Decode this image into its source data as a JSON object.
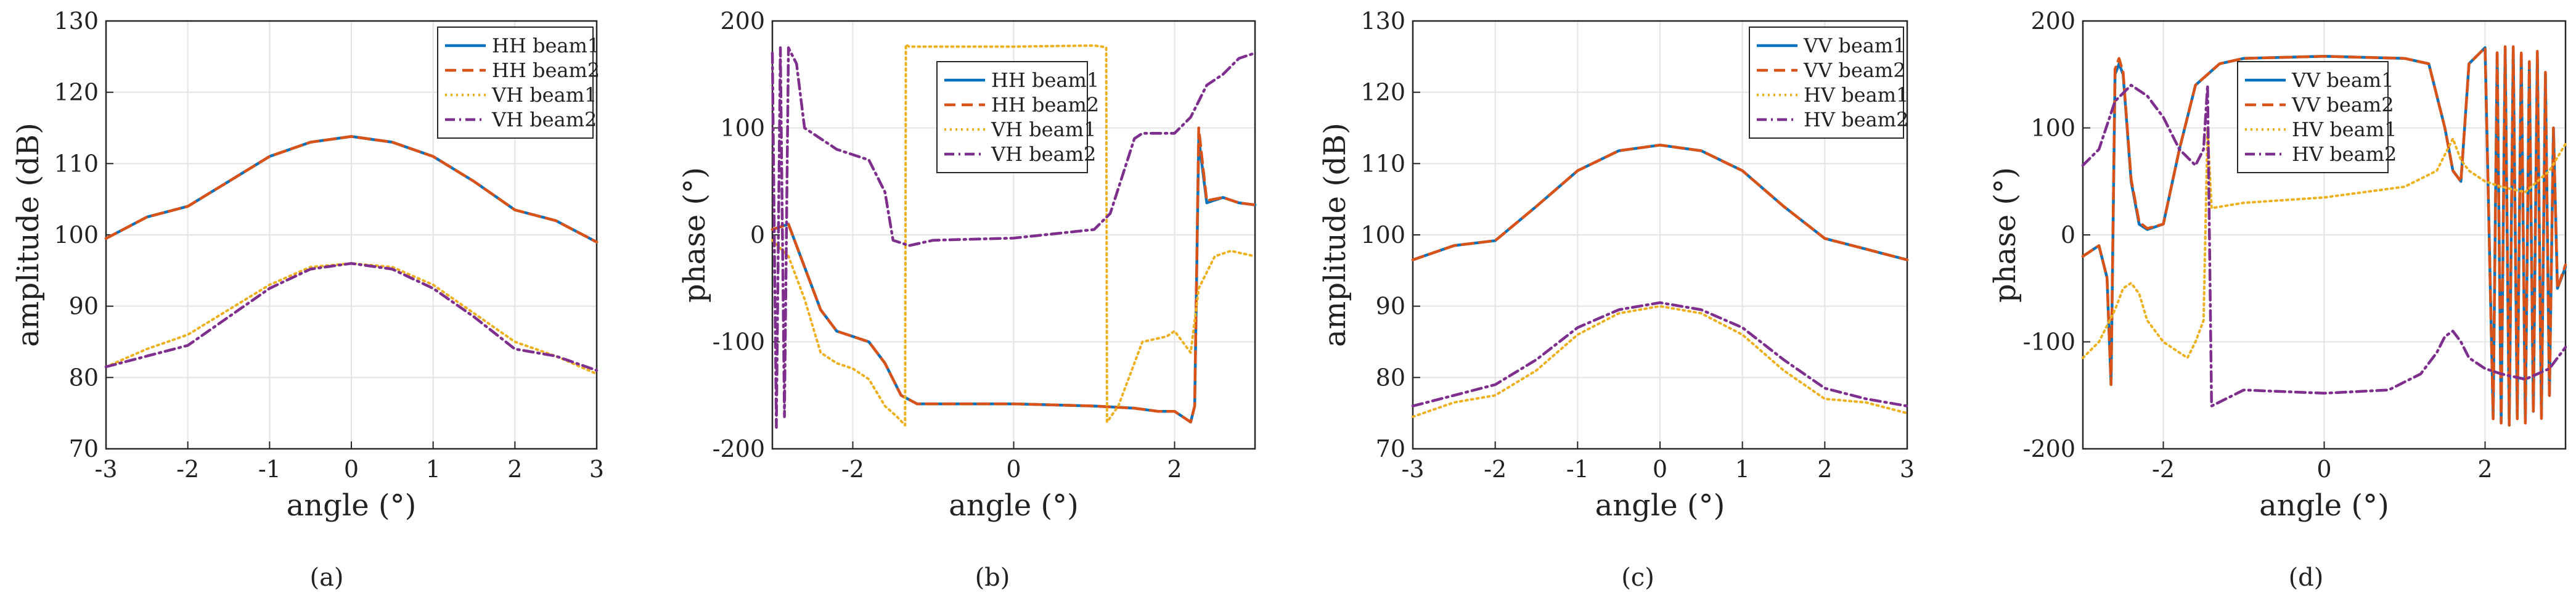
{
  "chart_data": [
    {
      "type": "line",
      "caption": "(a)",
      "xlabel": "angle (°)",
      "ylabel": "amplitude (dB)",
      "xlim": [
        -3,
        3
      ],
      "ylim": [
        70,
        130
      ],
      "xticks": [
        -3,
        -2,
        -1,
        0,
        1,
        2,
        3
      ],
      "yticks": [
        70,
        80,
        90,
        100,
        110,
        120,
        130
      ],
      "grid": true,
      "legend_position": "top-right",
      "series": [
        {
          "name": "HH beam1",
          "color": "#0072BD",
          "style": "solid",
          "x": [
            -3,
            -2.5,
            -2,
            -1.5,
            -1,
            -0.5,
            0,
            0.5,
            1,
            1.5,
            2,
            2.5,
            3
          ],
          "values": [
            99.5,
            102.5,
            104,
            107.5,
            111,
            113,
            113.8,
            113,
            111,
            107.5,
            103.5,
            102,
            99
          ]
        },
        {
          "name": "HH beam2",
          "color": "#D95319",
          "style": "dashed",
          "x": [
            -3,
            -2.5,
            -2,
            -1.5,
            -1,
            -0.5,
            0,
            0.5,
            1,
            1.5,
            2,
            2.5,
            3
          ],
          "values": [
            99.5,
            102.5,
            104,
            107.5,
            111,
            113,
            113.8,
            113,
            111,
            107.5,
            103.5,
            102,
            99
          ]
        },
        {
          "name": "VH beam1",
          "color": "#EDB120",
          "style": "dotted",
          "x": [
            -3,
            -2.5,
            -2,
            -1.5,
            -1,
            -0.5,
            0,
            0.5,
            1,
            1.5,
            2,
            2.5,
            3
          ],
          "values": [
            81.5,
            84,
            86,
            89.5,
            93,
            95.5,
            96,
            95.5,
            93,
            89,
            85,
            83,
            80.5
          ]
        },
        {
          "name": "VH beam2",
          "color": "#7E2F8E",
          "style": "dashdot",
          "x": [
            -3,
            -2.5,
            -2,
            -1.5,
            -1,
            -0.5,
            0,
            0.5,
            1,
            1.5,
            2,
            2.5,
            3
          ],
          "values": [
            81.5,
            83,
            84.5,
            88.5,
            92.5,
            95.2,
            96,
            95.2,
            92.5,
            88.5,
            84,
            83,
            81
          ]
        }
      ]
    },
    {
      "type": "line",
      "caption": "(b)",
      "xlabel": "angle (°)",
      "ylabel": "phase (°)",
      "xlim": [
        -3,
        3
      ],
      "ylim": [
        -200,
        200
      ],
      "xticks": [
        -2,
        0,
        2
      ],
      "yticks": [
        -200,
        -100,
        0,
        100,
        200
      ],
      "grid": true,
      "legend_position": "top-center",
      "series": [
        {
          "name": "HH beam1",
          "color": "#0072BD",
          "style": "solid",
          "x": [
            -3,
            -2.8,
            -2.6,
            -2.4,
            -2.2,
            -2.0,
            -1.8,
            -1.6,
            -1.4,
            -1.2,
            -1.0,
            0,
            1.0,
            1.5,
            1.8,
            2.0,
            2.2,
            2.25,
            2.3,
            2.35,
            2.4,
            2.6,
            2.8,
            3.0
          ],
          "values": [
            5,
            10,
            -30,
            -70,
            -90,
            -95,
            -100,
            -120,
            -150,
            -158,
            -158,
            -158,
            -160,
            -162,
            -165,
            -165,
            -175,
            -160,
            90,
            60,
            30,
            35,
            30,
            28
          ]
        },
        {
          "name": "HH beam2",
          "color": "#D95319",
          "style": "dashed",
          "x": [
            -3,
            -2.8,
            -2.6,
            -2.4,
            -2.2,
            -2.0,
            -1.8,
            -1.6,
            -1.4,
            -1.2,
            -1.0,
            0,
            1.0,
            1.5,
            1.8,
            2.0,
            2.2,
            2.25,
            2.3,
            2.35,
            2.4,
            2.6,
            2.8,
            3.0
          ],
          "values": [
            5,
            10,
            -30,
            -70,
            -90,
            -95,
            -100,
            -120,
            -150,
            -158,
            -158,
            -158,
            -160,
            -162,
            -165,
            -165,
            -175,
            -160,
            100,
            65,
            32,
            35,
            30,
            28
          ]
        },
        {
          "name": "VH beam1",
          "color": "#EDB120",
          "style": "dotted",
          "x": [
            -3,
            -2.8,
            -2.6,
            -2.4,
            -2.2,
            -2.0,
            -1.8,
            -1.6,
            -1.45,
            -1.35,
            -1.34,
            -1.3,
            0,
            1.0,
            1.1,
            1.15,
            1.16,
            1.3,
            1.6,
            1.9,
            2.0,
            2.2,
            2.3,
            2.5,
            2.7,
            3.0
          ],
          "values": [
            -5,
            -20,
            -60,
            -110,
            -120,
            -125,
            -135,
            -160,
            -170,
            -178,
            178,
            176,
            176,
            177,
            176,
            175,
            -175,
            -160,
            -100,
            -95,
            -90,
            -110,
            -50,
            -20,
            -15,
            -20
          ]
        },
        {
          "name": "VH beam2",
          "color": "#7E2F8E",
          "style": "dashdot",
          "x": [
            -3,
            -2.95,
            -2.9,
            -2.85,
            -2.8,
            -2.7,
            -2.6,
            -2.4,
            -2.2,
            -2.0,
            -1.8,
            -1.6,
            -1.5,
            -1.3,
            -1.0,
            0,
            1.0,
            1.2,
            1.5,
            1.6,
            1.7,
            2.0,
            2.2,
            2.4,
            2.6,
            2.8,
            3.0
          ],
          "values": [
            170,
            -180,
            175,
            -170,
            175,
            160,
            100,
            90,
            80,
            75,
            70,
            40,
            -5,
            -10,
            -5,
            -3,
            5,
            20,
            90,
            95,
            95,
            95,
            110,
            140,
            150,
            165,
            170
          ]
        }
      ]
    },
    {
      "type": "line",
      "caption": "(c)",
      "xlabel": "angle (°)",
      "ylabel": "amplitude (dB)",
      "xlim": [
        -3,
        3
      ],
      "ylim": [
        70,
        130
      ],
      "xticks": [
        -3,
        -2,
        -1,
        0,
        1,
        2,
        3
      ],
      "yticks": [
        70,
        80,
        90,
        100,
        110,
        120,
        130
      ],
      "grid": true,
      "legend_position": "top-right",
      "series": [
        {
          "name": "VV beam1",
          "color": "#0072BD",
          "style": "solid",
          "x": [
            -3,
            -2.5,
            -2,
            -1.5,
            -1,
            -0.5,
            0,
            0.5,
            1,
            1.5,
            2,
            2.5,
            3
          ],
          "values": [
            96.5,
            98.5,
            99.2,
            104,
            109,
            111.8,
            112.6,
            111.8,
            109,
            104,
            99.5,
            98,
            96.5
          ]
        },
        {
          "name": "VV beam2",
          "color": "#D95319",
          "style": "dashed",
          "x": [
            -3,
            -2.5,
            -2,
            -1.5,
            -1,
            -0.5,
            0,
            0.5,
            1,
            1.5,
            2,
            2.5,
            3
          ],
          "values": [
            96.5,
            98.5,
            99.2,
            104,
            109,
            111.8,
            112.6,
            111.8,
            109,
            104,
            99.5,
            98,
            96.5
          ]
        },
        {
          "name": "HV beam1",
          "color": "#EDB120",
          "style": "dotted",
          "x": [
            -3,
            -2.5,
            -2,
            -1.5,
            -1,
            -0.5,
            0,
            0.5,
            1,
            1.5,
            2,
            2.5,
            3
          ],
          "values": [
            74.5,
            76.5,
            77.5,
            81,
            86,
            89,
            90,
            89,
            86,
            81,
            77,
            76.5,
            75
          ]
        },
        {
          "name": "HV beam2",
          "color": "#7E2F8E",
          "style": "dashdot",
          "x": [
            -3,
            -2.5,
            -2,
            -1.5,
            -1,
            -0.5,
            0,
            0.5,
            1,
            1.5,
            2,
            2.5,
            3
          ],
          "values": [
            76,
            77.5,
            79,
            82.5,
            87,
            89.5,
            90.5,
            89.5,
            87,
            82.5,
            78.5,
            77,
            76
          ]
        }
      ]
    },
    {
      "type": "line",
      "caption": "(d)",
      "xlabel": "angle (°)",
      "ylabel": "phase (°)",
      "xlim": [
        -3,
        3
      ],
      "ylim": [
        -200,
        200
      ],
      "xticks": [
        -2,
        0,
        2
      ],
      "yticks": [
        -200,
        -100,
        0,
        100,
        200
      ],
      "grid": true,
      "legend_position": "top-center",
      "series": [
        {
          "name": "VV beam1",
          "color": "#0072BD",
          "style": "solid",
          "x": [
            -3,
            -2.8,
            -2.7,
            -2.65,
            -2.6,
            -2.55,
            -2.5,
            -2.4,
            -2.3,
            -2.2,
            -2.0,
            -1.8,
            -1.6,
            -1.3,
            -1.0,
            0,
            1.0,
            1.3,
            1.5,
            1.6,
            1.7,
            1.8,
            2.0,
            2.1,
            2.15,
            2.2,
            2.25,
            2.3,
            2.35,
            2.4,
            2.45,
            2.5,
            2.55,
            2.6,
            2.65,
            2.7,
            2.75,
            2.8,
            2.85,
            2.9,
            3.0
          ],
          "values": [
            -20,
            -10,
            -40,
            -140,
            150,
            160,
            150,
            50,
            10,
            5,
            10,
            80,
            140,
            160,
            165,
            167,
            165,
            160,
            100,
            60,
            50,
            160,
            175,
            -170,
            170,
            -175,
            175,
            -178,
            175,
            -170,
            170,
            -175,
            160,
            -165,
            170,
            -170,
            150,
            -150,
            100,
            -50,
            -30
          ]
        },
        {
          "name": "VV beam2",
          "color": "#D95319",
          "style": "dashed",
          "x": [
            -3,
            -2.8,
            -2.7,
            -2.65,
            -2.6,
            -2.55,
            -2.5,
            -2.4,
            -2.3,
            -2.2,
            -2.0,
            -1.8,
            -1.6,
            -1.3,
            -1.0,
            0,
            1.0,
            1.3,
            1.5,
            1.6,
            1.7,
            1.8,
            2.0,
            2.1,
            2.15,
            2.2,
            2.25,
            2.3,
            2.35,
            2.4,
            2.45,
            2.5,
            2.55,
            2.6,
            2.65,
            2.7,
            2.75,
            2.8,
            2.85,
            2.9,
            3.0
          ],
          "values": [
            -20,
            -10,
            -40,
            -140,
            155,
            165,
            152,
            52,
            12,
            6,
            10,
            80,
            140,
            160,
            165,
            167,
            165,
            160,
            100,
            60,
            50,
            160,
            175,
            -172,
            172,
            -176,
            176,
            -178,
            176,
            -172,
            172,
            -176,
            162,
            -166,
            172,
            -172,
            152,
            -152,
            100,
            -50,
            -28
          ]
        },
        {
          "name": "HV beam1",
          "color": "#EDB120",
          "style": "dotted",
          "x": [
            -3,
            -2.8,
            -2.6,
            -2.5,
            -2.4,
            -2.3,
            -2.2,
            -2.0,
            -1.8,
            -1.7,
            -1.6,
            -1.5,
            -1.45,
            -1.4,
            -1.0,
            0,
            1.0,
            1.4,
            1.6,
            1.7,
            1.8,
            2.0,
            2.2,
            2.5,
            2.8,
            3.0
          ],
          "values": [
            -115,
            -100,
            -70,
            -50,
            -45,
            -55,
            -80,
            -100,
            -110,
            -115,
            -100,
            -80,
            100,
            25,
            30,
            35,
            45,
            60,
            90,
            70,
            60,
            50,
            45,
            40,
            60,
            85
          ]
        },
        {
          "name": "HV beam2",
          "color": "#7E2F8E",
          "style": "dashdot",
          "x": [
            -3,
            -2.8,
            -2.6,
            -2.4,
            -2.2,
            -2.0,
            -1.8,
            -1.6,
            -1.5,
            -1.45,
            -1.4,
            -1.0,
            0,
            0.8,
            1.2,
            1.4,
            1.5,
            1.6,
            1.7,
            1.8,
            2.0,
            2.2,
            2.5,
            2.8,
            3.0
          ],
          "values": [
            65,
            80,
            125,
            140,
            130,
            110,
            80,
            65,
            80,
            140,
            -160,
            -145,
            -148,
            -145,
            -130,
            -110,
            -95,
            -90,
            -100,
            -115,
            -125,
            -130,
            -135,
            -125,
            -105
          ]
        }
      ]
    }
  ]
}
